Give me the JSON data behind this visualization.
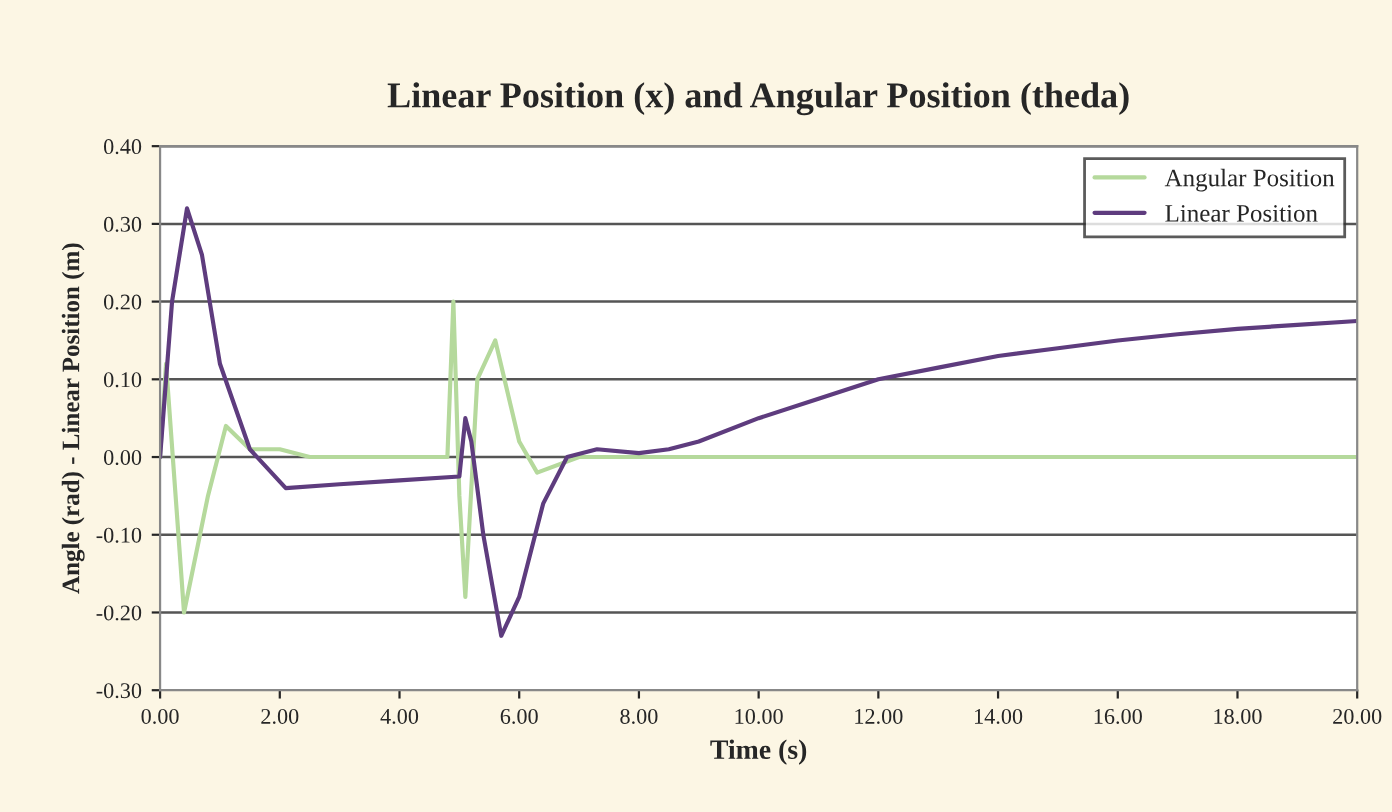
{
  "chart_data": {
    "type": "line",
    "title": "Linear Position (x) and Angular Position (theda)",
    "xlabel": "Time (s)",
    "ylabel": "Angle (rad) - Linear Position (m)",
    "xlim": [
      0,
      20
    ],
    "xticks": [
      {
        "value": 0,
        "label": "0.00"
      },
      {
        "value": 2,
        "label": "2.00"
      },
      {
        "value": 4,
        "label": "4.00"
      },
      {
        "value": 6,
        "label": "6.00"
      },
      {
        "value": 8,
        "label": "8.00"
      },
      {
        "value": 10,
        "label": "10.00"
      },
      {
        "value": 12,
        "label": "12.00"
      },
      {
        "value": 14,
        "label": "14.00"
      },
      {
        "value": 16,
        "label": "16.00"
      },
      {
        "value": 18,
        "label": "18.00"
      },
      {
        "value": 20,
        "label": "20.00"
      }
    ],
    "ylim": [
      -0.3,
      0.4
    ],
    "yticks": [
      {
        "value": -0.3,
        "label": "-0.30"
      },
      {
        "value": -0.2,
        "label": "-0.20"
      },
      {
        "value": -0.1,
        "label": "-0.10"
      },
      {
        "value": 0,
        "label": "0.00"
      },
      {
        "value": 0.1,
        "label": "0.10"
      },
      {
        "value": 0.2,
        "label": "0.20"
      },
      {
        "value": 0.3,
        "label": "0.30"
      },
      {
        "value": 0.4,
        "label": "0.40"
      }
    ],
    "grid": "y",
    "legend": "top right",
    "marker": "none",
    "line_style": "solid",
    "series": [
      {
        "name": "Angular Position",
        "color": "#b5d99c",
        "x": [
          0,
          0.1,
          0.4,
          0.8,
          1.1,
          1.5,
          2.0,
          2.5,
          4.8,
          4.9,
          5.0,
          5.1,
          5.3,
          5.6,
          6.0,
          6.3,
          7.0,
          20
        ],
        "values": [
          0,
          0.12,
          -0.2,
          -0.05,
          0.04,
          0.01,
          0.01,
          0,
          0,
          0.2,
          -0.05,
          -0.18,
          0.1,
          0.15,
          0.02,
          -0.02,
          0,
          0
        ]
      },
      {
        "name": "Linear Position",
        "color": "#5e3c7e",
        "x": [
          0,
          0.2,
          0.45,
          0.7,
          1.0,
          1.5,
          2.1,
          3.0,
          4.0,
          5.0,
          5.1,
          5.2,
          5.4,
          5.7,
          6.0,
          6.4,
          6.8,
          7.3,
          8.0,
          8.5,
          9.0,
          10.0,
          11.0,
          12.0,
          13.0,
          14.0,
          15.0,
          16.0,
          17.0,
          18.0,
          19.0,
          20.0
        ],
        "values": [
          0,
          0.2,
          0.32,
          0.26,
          0.12,
          0.01,
          -0.04,
          -0.035,
          -0.03,
          -0.025,
          0.05,
          0.02,
          -0.1,
          -0.23,
          -0.18,
          -0.06,
          0,
          0.01,
          0.005,
          0.01,
          0.02,
          0.05,
          0.075,
          0.1,
          0.115,
          0.13,
          0.14,
          0.15,
          0.158,
          0.165,
          0.17,
          0.175
        ]
      }
    ]
  }
}
